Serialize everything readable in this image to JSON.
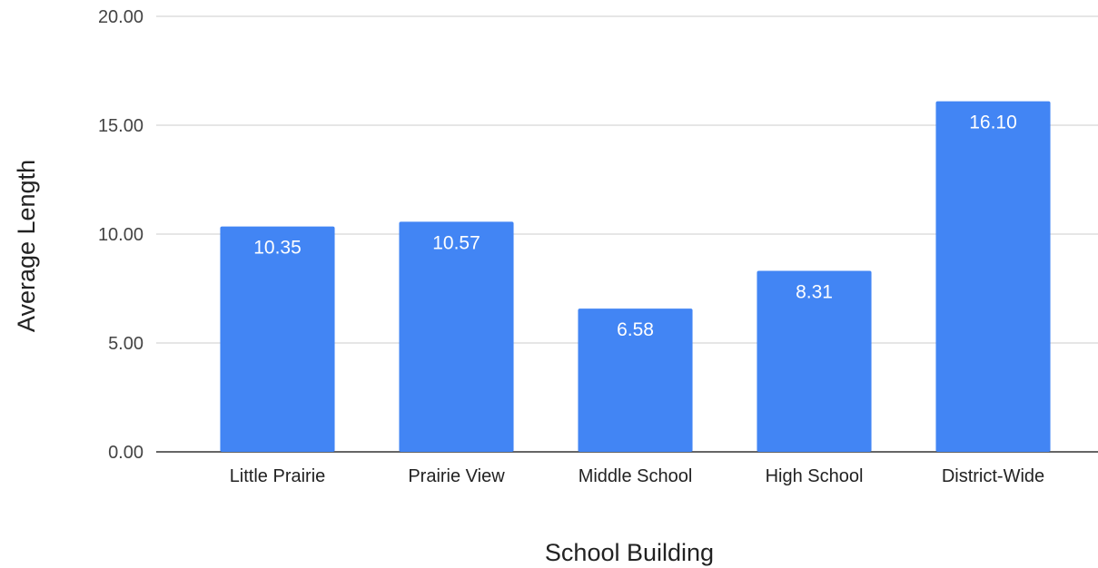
{
  "chart_data": {
    "type": "bar",
    "title": "",
    "xlabel": "School Building",
    "ylabel": "Average Length",
    "categories": [
      "Little Prairie",
      "Prairie View",
      "Middle School",
      "High School",
      "District-Wide"
    ],
    "values": [
      10.35,
      10.57,
      6.58,
      8.31,
      16.1
    ],
    "data_labels": [
      "10.35",
      "10.57",
      "6.58",
      "8.31",
      "16.10"
    ],
    "yticks": [
      "0.00",
      "5.00",
      "10.00",
      "15.00",
      "20.00"
    ],
    "ytick_values": [
      0,
      5,
      10,
      15,
      20
    ],
    "ylim": [
      0,
      20
    ],
    "grid": true,
    "legend": "none",
    "bar_color": "#4285F4",
    "grid_color": "#cccccc",
    "baseline_color": "#333333"
  }
}
